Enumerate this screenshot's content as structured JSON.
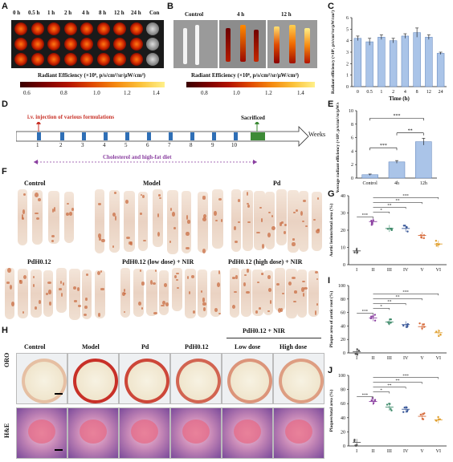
{
  "panels": {
    "A": {
      "letter": "A",
      "time_labels": [
        "0 h",
        "0.5 h",
        "1 h",
        "2 h",
        "4 h",
        "8 h",
        "12 h",
        "24 h",
        "Con"
      ],
      "colorbar_title": "Radiant Efficiency (×10⁶, p/s/cm²/sr/μW/cm²)",
      "ticks": [
        "0.6",
        "0.8",
        "1.0",
        "1.2",
        "1.4"
      ]
    },
    "B": {
      "letter": "B",
      "labels": [
        "Control",
        "4 h",
        "12 h"
      ],
      "colorbar_title": "Radiant Efficiency (×10⁶, p/s/cm²/sr/μW/cm²)",
      "ticks": [
        "0.8",
        "1.0",
        "1.2",
        "1.4"
      ]
    },
    "C": {
      "letter": "C"
    },
    "D": {
      "letter": "D",
      "injection": "i.v. injection of various formulations",
      "sacrificed": "Sacrificed",
      "weeks": "Weeks",
      "numbers": [
        "1",
        "2",
        "3",
        "4",
        "5",
        "6",
        "7",
        "8",
        "9",
        "10"
      ],
      "diet": "Cholesterol and high-fat diet"
    },
    "E": {
      "letter": "E"
    },
    "F": {
      "letter": "F",
      "groups": [
        "Control",
        "Model",
        "Pd",
        "PdH0.12",
        "PdH0.12 (low dose) + NIR",
        "PdH0.12 (high dose) + NIR"
      ]
    },
    "G": {
      "letter": "G"
    },
    "H": {
      "letter": "H",
      "columns": [
        "Control",
        "Model",
        "Pd",
        "PdH0.12",
        "Low dose",
        "High dose"
      ],
      "group_header": "PdH0.12 + NIR",
      "rows": [
        "ORO",
        "H&E"
      ]
    },
    "I": {
      "letter": "I"
    },
    "J": {
      "letter": "J"
    }
  },
  "chart_data": [
    {
      "id": "C",
      "type": "bar",
      "categories": [
        "0",
        "0.5",
        "1",
        "2",
        "4",
        "8",
        "12",
        "24"
      ],
      "values": [
        4.2,
        3.9,
        4.3,
        4.0,
        4.4,
        4.7,
        4.3,
        2.9
      ],
      "errors": [
        0.2,
        0.3,
        0.2,
        0.2,
        0.2,
        0.4,
        0.2,
        0.1
      ],
      "xlabel": "Time (h)",
      "ylabel": "Radiant efficiency (×10⁶, p/s/cm²/sr/μW/cm²)",
      "ylim": [
        0,
        6
      ],
      "yticks": [
        0,
        1,
        2,
        3,
        4,
        5,
        6
      ],
      "color": "#aac4e8"
    },
    {
      "id": "E",
      "type": "bar",
      "categories": [
        "Control",
        "4h",
        "12h"
      ],
      "values": [
        0.5,
        2.4,
        5.4
      ],
      "errors": [
        0.1,
        0.2,
        0.5
      ],
      "ylabel": "Average radiant efficiency (×10⁶, p/s/cm²/sr/μW/cm²)",
      "ylim": [
        0,
        10
      ],
      "yticks": [
        0,
        2,
        4,
        6,
        8,
        10
      ],
      "color": "#aac4e8",
      "significance": [
        {
          "from": 0,
          "to": 1,
          "label": "***"
        },
        {
          "from": 1,
          "to": 2,
          "label": "**"
        },
        {
          "from": 0,
          "to": 2,
          "label": "***"
        }
      ]
    },
    {
      "id": "G",
      "type": "scatter",
      "categories": [
        "I",
        "II",
        "III",
        "IV",
        "V",
        "VI"
      ],
      "means": [
        8,
        25,
        21,
        21,
        17,
        12
      ],
      "ylabel": "Aortic lesions/total area (%)",
      "ylim": [
        0,
        40
      ],
      "yticks": [
        0,
        10,
        20,
        30,
        40
      ],
      "colors": [
        "#555555",
        "#8a3fa0",
        "#3e8a6a",
        "#3c5a9a",
        "#d66a3a",
        "#e0a030"
      ],
      "significance": [
        {
          "from": 0,
          "to": 1,
          "label": "***"
        },
        {
          "from": 1,
          "to": 2,
          "label": "*"
        },
        {
          "from": 1,
          "to": 3,
          "label": "**"
        },
        {
          "from": 1,
          "to": 4,
          "label": "**"
        },
        {
          "from": 1,
          "to": 5,
          "label": "***"
        }
      ]
    },
    {
      "id": "I",
      "type": "scatter",
      "categories": [
        "I",
        "II",
        "III",
        "IV",
        "V",
        "VI"
      ],
      "means": [
        2,
        52,
        46,
        42,
        39,
        30
      ],
      "ylabel": "Plaque area of arotic root (%)",
      "ylim": [
        0,
        100
      ],
      "yticks": [
        0,
        20,
        40,
        60,
        80,
        100
      ],
      "colors": [
        "#555555",
        "#8a3fa0",
        "#3e8a6a",
        "#3c5a9a",
        "#d66a3a",
        "#e0a030"
      ],
      "significance": [
        {
          "from": 0,
          "to": 1,
          "label": "***"
        },
        {
          "from": 1,
          "to": 2,
          "label": "*"
        },
        {
          "from": 1,
          "to": 3,
          "label": "**"
        },
        {
          "from": 1,
          "to": 4,
          "label": "**"
        },
        {
          "from": 1,
          "to": 5,
          "label": "***"
        }
      ]
    },
    {
      "id": "J",
      "type": "scatter",
      "categories": [
        "I",
        "II",
        "III",
        "IV",
        "V",
        "VI"
      ],
      "means": [
        5,
        63,
        55,
        52,
        42,
        37
      ],
      "ylabel": "Plaques/total area (%)",
      "ylim": [
        0,
        100
      ],
      "yticks": [
        0,
        20,
        40,
        60,
        80,
        100
      ],
      "colors": [
        "#555555",
        "#8a3fa0",
        "#3e8a6a",
        "#3c5a9a",
        "#d66a3a",
        "#e0a030"
      ],
      "significance": [
        {
          "from": 0,
          "to": 1,
          "label": "***"
        },
        {
          "from": 1,
          "to": 2,
          "label": "*"
        },
        {
          "from": 1,
          "to": 3,
          "label": "**"
        },
        {
          "from": 1,
          "to": 4,
          "label": "**"
        },
        {
          "from": 1,
          "to": 5,
          "label": "***"
        }
      ]
    }
  ]
}
